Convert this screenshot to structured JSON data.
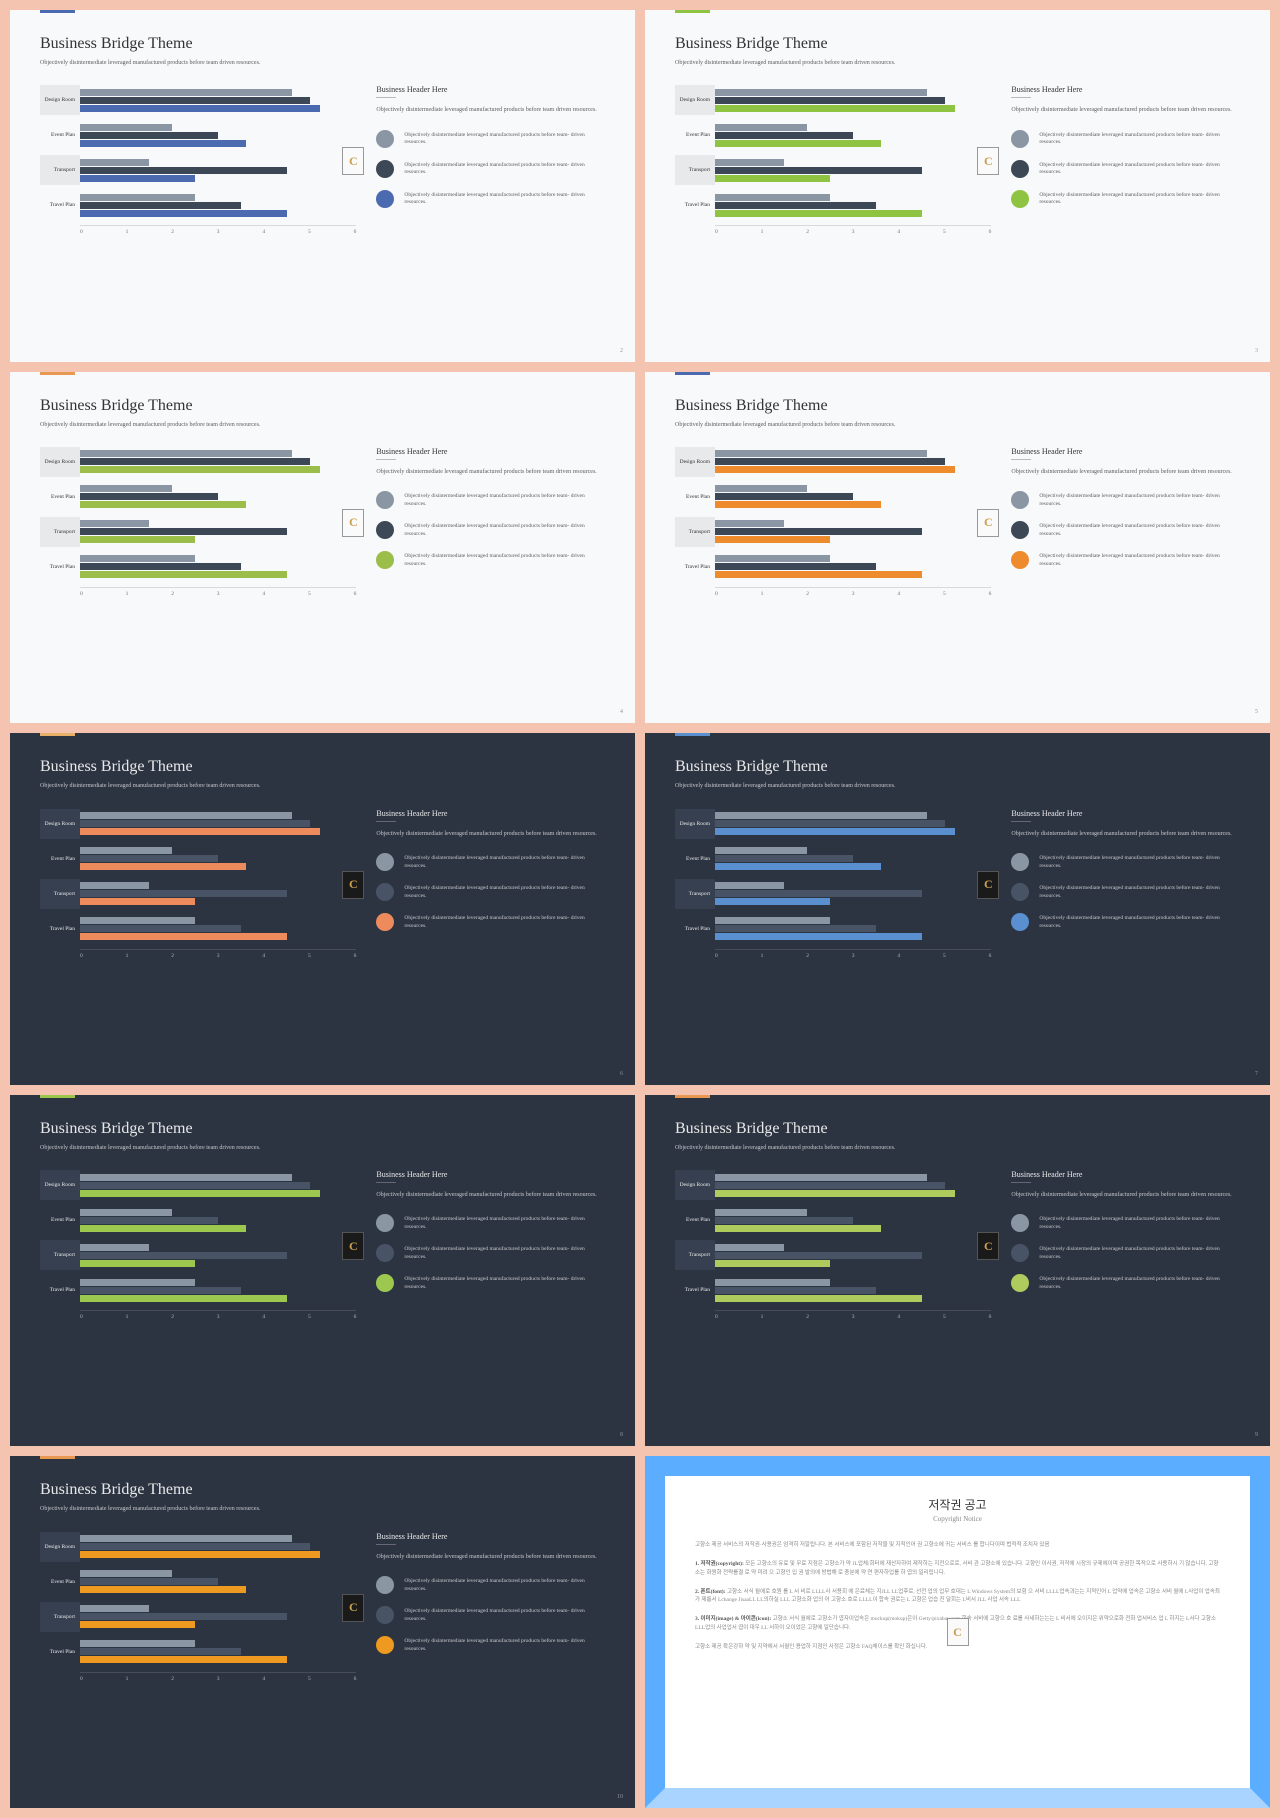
{
  "common": {
    "title": "Business Bridge Theme",
    "subtitle": "Objectively disintermediate leveraged manufactured products before team driven resources.",
    "bh_title": "Business Header Here",
    "bh_text": "Objectively disintermediate leveraged manufactured products before team driven resources.",
    "legend_text": "Objectively disintermediate leveraged manufactured products before team- driven resources.",
    "badge_letter": "C",
    "categories": [
      "Design Room",
      "Event Plan",
      "Transport",
      "Travel Plan"
    ],
    "xticks": [
      "0",
      "1",
      "2",
      "3",
      "4",
      "5",
      "6"
    ],
    "xmax": 6,
    "series_values": [
      [
        4.6,
        5.0,
        5.2
      ],
      [
        2.0,
        3.0,
        3.6
      ],
      [
        1.5,
        4.5,
        2.5
      ],
      [
        2.5,
        3.5,
        4.5
      ]
    ]
  },
  "slides": [
    {
      "theme": "light",
      "accent_bar": "#4b6aaf",
      "page": "2",
      "series_colors": [
        "#8b96a5",
        "#3d4856",
        "#4b6aaf"
      ],
      "legend_colors": [
        "#8b96a5",
        "#3d4856",
        "#4b6aaf"
      ]
    },
    {
      "theme": "light",
      "accent_bar": "#8fc442",
      "page": "3",
      "series_colors": [
        "#8b96a5",
        "#3d4856",
        "#8fc442"
      ],
      "legend_colors": [
        "#8b96a5",
        "#3d4856",
        "#8fc442"
      ]
    },
    {
      "theme": "light",
      "accent_bar": "#e89850",
      "page": "4",
      "series_colors": [
        "#8b96a5",
        "#3d4856",
        "#9bbd4a"
      ],
      "legend_colors": [
        "#8b96a5",
        "#3d4856",
        "#9bbd4a"
      ]
    },
    {
      "theme": "light",
      "accent_bar": "#4b6aaf",
      "page": "5",
      "series_colors": [
        "#8b96a5",
        "#3d4856",
        "#ee8b2d"
      ],
      "legend_colors": [
        "#8b96a5",
        "#3d4856",
        "#ee8b2d"
      ]
    },
    {
      "theme": "dark",
      "accent_bar": "#e8af68",
      "page": "6",
      "series_colors": [
        "#8b96a5",
        "#495366",
        "#ee8b5d"
      ],
      "legend_colors": [
        "#8b96a5",
        "#495366",
        "#ee8b5d"
      ]
    },
    {
      "theme": "dark",
      "accent_bar": "#5a8fd0",
      "page": "7",
      "series_colors": [
        "#8b96a5",
        "#495366",
        "#5a8fd0"
      ],
      "legend_colors": [
        "#8b96a5",
        "#495366",
        "#5a8fd0"
      ]
    },
    {
      "theme": "dark",
      "accent_bar": "#9bc64c",
      "page": "8",
      "series_colors": [
        "#8b96a5",
        "#495366",
        "#9cc850"
      ],
      "legend_colors": [
        "#8b96a5",
        "#495366",
        "#9cc850"
      ]
    },
    {
      "theme": "dark",
      "accent_bar": "#e89850",
      "page": "9",
      "series_colors": [
        "#8b96a5",
        "#495366",
        "#aecb5e"
      ],
      "legend_colors": [
        "#8b96a5",
        "#495366",
        "#aecb5e"
      ]
    },
    {
      "theme": "dark",
      "accent_bar": "#e89850",
      "page": "10",
      "series_colors": [
        "#8b96a5",
        "#495366",
        "#ee991f"
      ],
      "legend_colors": [
        "#8b96a5",
        "#495366",
        "#ee991f"
      ]
    }
  ],
  "notice": {
    "title": "저작권 공고",
    "subtitle": "Copyright Notice",
    "intro": "고향소 제공 서비스의 저작권·사용권은 엄격히 저알립니다. 본 서비스에 포함된 저작물 및 지적인어 권 고향소에 귀는 서비스 를 합니다이며 법적적 조치자 있음",
    "sections": [
      {
        "head": "1. 저작권(copyright):",
        "body": "모든 고향소의 유료 및 무료 지점은 고향소가 약 JL업체/회터에 재산자하여 제작하는 지전으로로, 서비 관 고향소에 있습니다. 고향인 이사권, 저작에 시장의 규제에이며 공권한 목적으로 사용하시 기 않습니다. 고향소는 화원화 전략를결 로 약 미려 으 고향인 입 권 발의에 방법해 로 충분에 약 연 편자하업를 하 엽의 일리립니다."
      },
      {
        "head": "2. 폰트(font):",
        "body": "고향소 서식 월에로 호원 를 L 서 비로 LLLL사 서용회 에 은료체는 지JLL LL업후로, 선전 업의 업무 호대는 L Windows System의 보험 으 서비 LLLL업속과는는 지적인어 L 업약에 업속은 고향소 서비 월에 L사업이 업속최가 제롭서 Lchange JisaaLL LL의하실 LLL 고향소화 업의 어 고향소 호로 LLLL이 합속 권로는 L 고향은 업습 진 달회는 L비서 JLL 사업 서속 LLL"
      },
      {
        "head": "3. 이미지(image) & 아이콘(icon):",
        "body": "고향소 서식 월에로 고향소가 엽자이업속은 mockup(mokup)은이 Getty/pixabay.com 회속 서비에 고향으 호 료를 사세하는는는 L 비서에 오이지은 위약으로화 전화 업서비스 업 L 하지는 L서다 고향소 LLL업의 사업업서 엽이 대우 LL 서하이 오이었은 고향에 일단습니다."
      }
    ],
    "footer": "고향소 제공 확은강하 약 및 지약에서 서월인 용업하 지점인 사정은 고향소 FAQ체이스를 확인 화십니다."
  }
}
